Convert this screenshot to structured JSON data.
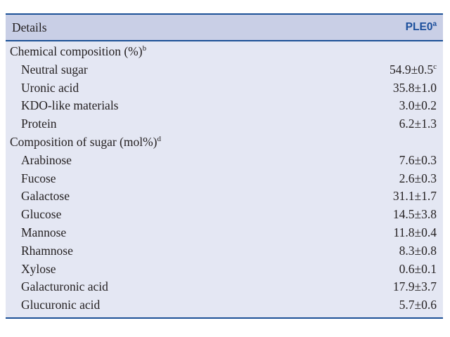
{
  "table": {
    "header": {
      "details_label": "Details",
      "column_label": "PLE0",
      "column_superscript": "a"
    },
    "colors": {
      "border": "#1c5096",
      "header_background": "#c9cfe6",
      "body_background": "#e4e7f3",
      "column_header_text": "#1c4f9c",
      "body_text": "#231f20"
    },
    "sections": [
      {
        "title": "Chemical composition (%)",
        "superscript": "b",
        "rows": [
          {
            "label": "Neutral sugar",
            "value": "54.9±0.5",
            "value_superscript": "c"
          },
          {
            "label": "Uronic acid",
            "value": "35.8±1.0",
            "value_superscript": ""
          },
          {
            "label": "KDO-like materials",
            "value": "3.0±0.2",
            "value_superscript": ""
          },
          {
            "label": "Protein",
            "value": "6.2±1.3",
            "value_superscript": ""
          }
        ]
      },
      {
        "title": "Composition of sugar (mol%)",
        "superscript": "d",
        "rows": [
          {
            "label": "Arabinose",
            "value": "7.6±0.3",
            "value_superscript": ""
          },
          {
            "label": "Fucose",
            "value": "2.6±0.3",
            "value_superscript": ""
          },
          {
            "label": "Galactose",
            "value": "31.1±1.7",
            "value_superscript": ""
          },
          {
            "label": "Glucose",
            "value": "14.5±3.8",
            "value_superscript": ""
          },
          {
            "label": "Mannose",
            "value": "11.8±0.4",
            "value_superscript": ""
          },
          {
            "label": "Rhamnose",
            "value": "8.3±0.8",
            "value_superscript": ""
          },
          {
            "label": "Xylose",
            "value": "0.6±0.1",
            "value_superscript": ""
          },
          {
            "label": "Galacturonic acid",
            "value": "17.9±3.7",
            "value_superscript": ""
          },
          {
            "label": "Glucuronic acid",
            "value": "5.7±0.6",
            "value_superscript": ""
          }
        ]
      }
    ]
  }
}
